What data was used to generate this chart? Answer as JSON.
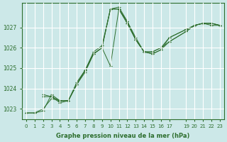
{
  "background_color": "#cce8e8",
  "grid_color": "#ffffff",
  "line_color": "#2d6e2d",
  "xlabel": "Graphe pression niveau de la mer (hPa)",
  "ylim": [
    1022.5,
    1028.2
  ],
  "xlim": [
    -0.5,
    23.5
  ],
  "yticks": [
    1023,
    1024,
    1025,
    1026,
    1027
  ],
  "xticks": [
    0,
    1,
    2,
    3,
    4,
    5,
    6,
    7,
    8,
    9,
    10,
    11,
    12,
    13,
    14,
    15,
    16,
    17,
    19,
    20,
    21,
    22,
    23
  ],
  "series": [
    {
      "x": [
        0,
        1,
        2,
        3,
        4,
        5,
        6,
        7,
        8,
        9,
        10,
        11,
        12,
        13,
        14,
        15,
        16,
        17,
        19,
        20,
        21,
        22,
        23
      ],
      "y": [
        1022.8,
        1022.8,
        1022.9,
        1023.7,
        1023.4,
        1023.4,
        1024.3,
        1024.9,
        1025.8,
        1026.1,
        1027.9,
        1028.0,
        1027.3,
        1026.4,
        1025.8,
        1025.7,
        1025.9,
        1026.3,
        1026.8,
        1027.1,
        1027.2,
        1027.2,
        1027.1
      ]
    },
    {
      "x": [
        0,
        1,
        2,
        3,
        4,
        5,
        6,
        7,
        8,
        9,
        10,
        11,
        12,
        13,
        14,
        15,
        16,
        17,
        19,
        20,
        21,
        22,
        23
      ],
      "y": [
        1022.8,
        1022.8,
        1023.0,
        1023.5,
        1023.4,
        1023.4,
        1024.2,
        1024.9,
        1025.7,
        1026.0,
        1025.1,
        1027.9,
        1027.2,
        1026.4,
        1025.8,
        1025.8,
        1026.0,
        1026.5,
        1026.9,
        1027.1,
        1027.2,
        1027.2,
        1027.1
      ]
    },
    {
      "x": [
        2,
        3,
        4,
        5,
        6,
        7,
        8,
        9,
        10,
        11,
        12,
        13,
        14,
        15,
        16,
        17,
        19,
        20,
        21,
        22,
        23
      ],
      "y": [
        1023.7,
        1023.6,
        1023.3,
        1023.4,
        1024.2,
        1024.8,
        1025.7,
        1026.0,
        1027.9,
        1027.9,
        1027.3,
        1026.5,
        1025.8,
        1025.8,
        1026.0,
        1026.3,
        1026.8,
        1027.1,
        1027.2,
        1027.1,
        1027.1
      ]
    },
    {
      "x": [
        2,
        3,
        4,
        5,
        6,
        7,
        8,
        9,
        10,
        11,
        12,
        13,
        14,
        15,
        16,
        17,
        19,
        20,
        21,
        22,
        23
      ],
      "y": [
        1023.6,
        1023.6,
        1023.4,
        1023.4,
        1024.2,
        1024.9,
        1025.7,
        1026.0,
        1027.9,
        1027.9,
        1027.2,
        1026.4,
        1025.8,
        1025.7,
        1025.9,
        1026.5,
        1026.9,
        1027.1,
        1027.2,
        1027.2,
        1027.1
      ]
    }
  ]
}
